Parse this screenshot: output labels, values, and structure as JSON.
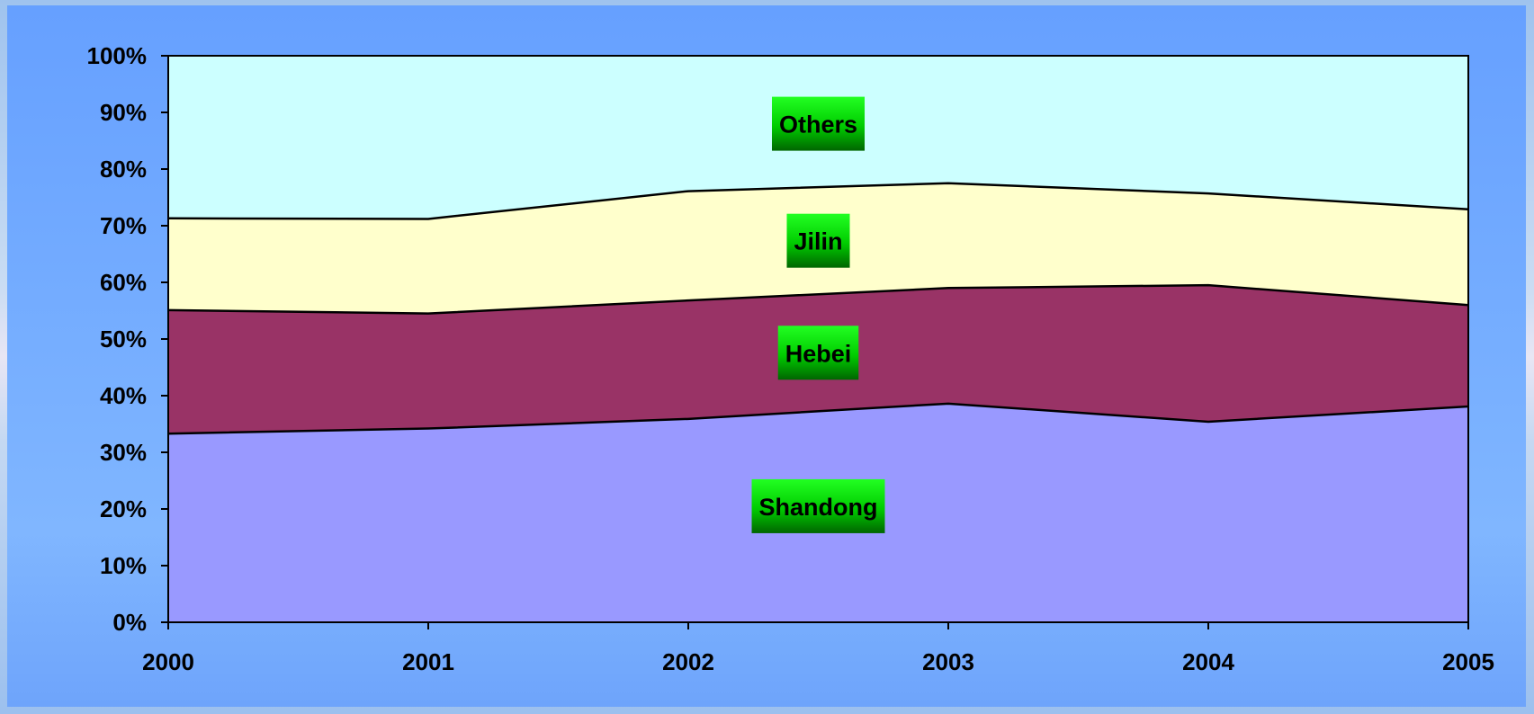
{
  "chart_data": {
    "type": "area",
    "stacked": true,
    "normalized_percent": true,
    "x": [
      "2000",
      "2001",
      "2002",
      "2003",
      "2004",
      "2005"
    ],
    "series": [
      {
        "name": "Shandong",
        "values": [
          33.3,
          34.2,
          35.9,
          38.6,
          35.4,
          38.1
        ],
        "color": "#9999ff"
      },
      {
        "name": "Hebei",
        "values": [
          21.8,
          20.3,
          20.9,
          20.4,
          24.1,
          17.9
        ],
        "color": "#993366"
      },
      {
        "name": "Jilin",
        "values": [
          16.2,
          16.7,
          19.3,
          18.5,
          16.2,
          16.9
        ],
        "color": "#ffffcc"
      },
      {
        "name": "Others",
        "values": [
          28.7,
          28.8,
          23.9,
          22.5,
          24.3,
          27.1
        ],
        "color": "#ccffff"
      }
    ],
    "y_ticks": [
      "0%",
      "10%",
      "20%",
      "30%",
      "40%",
      "50%",
      "60%",
      "70%",
      "80%",
      "90%",
      "100%"
    ],
    "ylim": [
      0,
      100
    ],
    "grid": false,
    "legend": "inline labels on each area",
    "label_box_color": "#00cc00"
  }
}
